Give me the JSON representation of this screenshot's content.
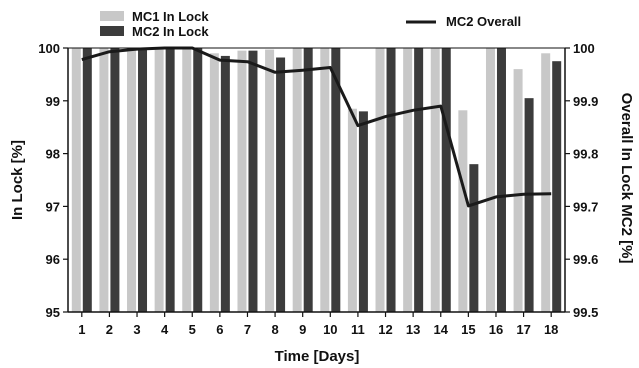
{
  "chart_data": {
    "type": "bar",
    "xlabel": "Time [Days]",
    "ylabel": "In Lock [%]",
    "y2label": "Overall In Lock MC2 [%]",
    "categories": [
      "1",
      "2",
      "3",
      "4",
      "5",
      "6",
      "7",
      "8",
      "9",
      "10",
      "11",
      "12",
      "13",
      "14",
      "15",
      "16",
      "17",
      "18"
    ],
    "ylim": [
      95,
      100
    ],
    "yticks": [
      "95",
      "96",
      "97",
      "98",
      "99",
      "100"
    ],
    "y2lim": [
      99.5,
      100
    ],
    "y2ticks": [
      "99.5",
      "99.6",
      "99.7",
      "99.8",
      "99.9",
      "100"
    ],
    "series": [
      {
        "name": "MC1 In Lock",
        "axis": "left",
        "kind": "bar",
        "color": "#c8c8c8",
        "values": [
          100,
          100,
          100,
          100,
          100,
          99.9,
          99.95,
          99.97,
          100,
          100,
          98.85,
          100,
          100,
          100,
          98.82,
          100,
          99.6,
          99.9
        ]
      },
      {
        "name": "MC2 In Lock",
        "axis": "left",
        "kind": "bar",
        "color": "#3c3c3c",
        "values": [
          100,
          100,
          100,
          100,
          100,
          99.85,
          99.95,
          99.82,
          100,
          100,
          98.8,
          100,
          100,
          100,
          97.8,
          100,
          99.05,
          99.75
        ]
      },
      {
        "name": "MC2 Overall",
        "axis": "right",
        "kind": "line",
        "color": "#1a1a1a",
        "values": [
          99.978,
          99.993,
          99.998,
          100.0,
          100.0,
          99.977,
          99.974,
          99.954,
          99.958,
          99.963,
          99.853,
          99.87,
          99.882,
          99.89,
          99.701,
          99.718,
          99.723,
          99.724
        ]
      }
    ],
    "legend": [
      "MC1 In Lock",
      "MC2 In Lock",
      "MC2 Overall"
    ],
    "grid": false
  }
}
